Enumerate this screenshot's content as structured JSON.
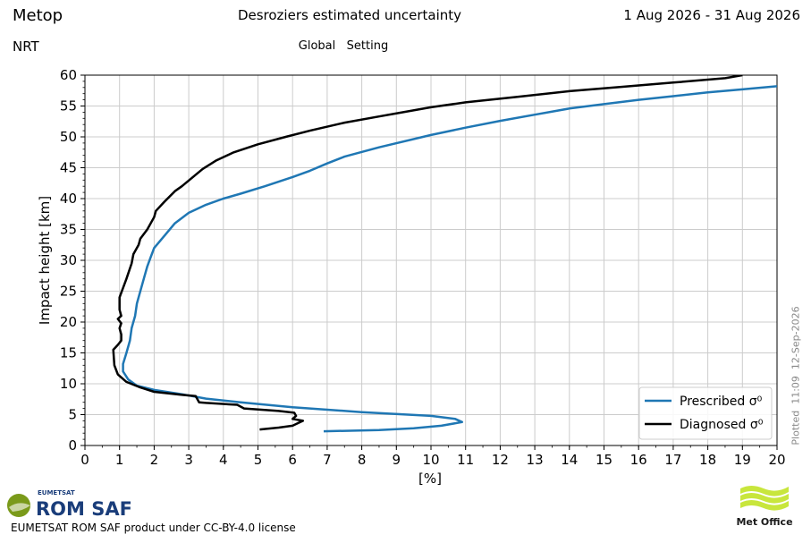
{
  "header": {
    "satellite": "Metop",
    "title": "Desroziers estimated uncertainty",
    "date_range": "1 Aug 2026 - 31 Aug 2026",
    "product": "NRT",
    "setting": "Global   Setting"
  },
  "footer": {
    "license": "EUMETSAT ROM SAF product under CC-BY-4.0 license",
    "plotted": "Plotted  11:09  12-Sep-2026",
    "eumetsat_logo_small": "EUMETSAT",
    "eumetsat_logo_main": "ROM SAF",
    "metoffice_logo": "Met Office"
  },
  "colors": {
    "prescribed": "#1f77b4",
    "diagnosed": "#000000",
    "grid": "#cccccc",
    "eumetsat_green": "#7a9a1a",
    "eumetsat_blue": "#1a3d7a",
    "metoffice_green": "#c8e63c"
  },
  "chart_data": {
    "type": "line",
    "xlabel": "[%]",
    "ylabel": "Impact height [km]",
    "xlim": [
      0,
      20
    ],
    "ylim": [
      0,
      60
    ],
    "xticks": [
      0,
      1,
      2,
      3,
      4,
      5,
      6,
      7,
      8,
      9,
      10,
      11,
      12,
      13,
      14,
      15,
      16,
      17,
      18,
      19,
      20
    ],
    "yticks": [
      0,
      5,
      10,
      15,
      20,
      25,
      30,
      35,
      40,
      45,
      50,
      55,
      60
    ],
    "grid": true,
    "legend_position": "lower-right",
    "series": [
      {
        "name": "Prescribed σ⁰",
        "color_key": "prescribed",
        "points": [
          [
            6.9,
            2.3
          ],
          [
            8.5,
            2.5
          ],
          [
            9.5,
            2.8
          ],
          [
            10.3,
            3.2
          ],
          [
            10.9,
            3.8
          ],
          [
            10.7,
            4.3
          ],
          [
            10.0,
            4.8
          ],
          [
            8.0,
            5.4
          ],
          [
            6.0,
            6.2
          ],
          [
            4.5,
            7.0
          ],
          [
            3.5,
            7.6
          ],
          [
            2.8,
            8.3
          ],
          [
            2.0,
            9.0
          ],
          [
            1.5,
            9.7
          ],
          [
            1.25,
            10.7
          ],
          [
            1.1,
            12.0
          ],
          [
            1.1,
            13.2
          ],
          [
            1.2,
            15.0
          ],
          [
            1.3,
            17.0
          ],
          [
            1.35,
            19.0
          ],
          [
            1.45,
            21.0
          ],
          [
            1.5,
            23.0
          ],
          [
            1.55,
            24.0
          ],
          [
            1.7,
            27.0
          ],
          [
            1.8,
            29.0
          ],
          [
            1.9,
            30.5
          ],
          [
            2.0,
            32.0
          ],
          [
            2.3,
            34.0
          ],
          [
            2.6,
            36.0
          ],
          [
            3.0,
            37.7
          ],
          [
            3.5,
            39.0
          ],
          [
            4.0,
            40.0
          ],
          [
            4.5,
            40.8
          ],
          [
            5.2,
            42.0
          ],
          [
            6.0,
            43.5
          ],
          [
            6.5,
            44.5
          ],
          [
            7.0,
            45.7
          ],
          [
            7.5,
            46.8
          ],
          [
            8.5,
            48.3
          ],
          [
            10.0,
            50.3
          ],
          [
            11.0,
            51.5
          ],
          [
            12.0,
            52.6
          ],
          [
            13.0,
            53.6
          ],
          [
            14.0,
            54.6
          ],
          [
            15.0,
            55.3
          ],
          [
            16.0,
            56.0
          ],
          [
            17.0,
            56.6
          ],
          [
            18.0,
            57.2
          ],
          [
            19.0,
            57.7
          ],
          [
            20.0,
            58.2
          ]
        ]
      },
      {
        "name": "Diagnosed σ⁰",
        "color_key": "diagnosed",
        "points": [
          [
            5.05,
            2.6
          ],
          [
            5.6,
            2.9
          ],
          [
            6.0,
            3.2
          ],
          [
            6.3,
            4.0
          ],
          [
            6.0,
            4.3
          ],
          [
            6.1,
            4.8
          ],
          [
            6.05,
            5.3
          ],
          [
            5.6,
            5.6
          ],
          [
            4.6,
            6.0
          ],
          [
            4.4,
            6.6
          ],
          [
            3.5,
            6.9
          ],
          [
            3.3,
            7.0
          ],
          [
            3.2,
            8.0
          ],
          [
            2.8,
            8.2
          ],
          [
            2.0,
            8.7
          ],
          [
            1.6,
            9.4
          ],
          [
            1.2,
            10.3
          ],
          [
            0.95,
            11.5
          ],
          [
            0.85,
            13.0
          ],
          [
            0.82,
            15.5
          ],
          [
            0.95,
            16.3
          ],
          [
            1.05,
            17.0
          ],
          [
            1.05,
            18.0
          ],
          [
            1.0,
            19.0
          ],
          [
            1.05,
            19.8
          ],
          [
            0.95,
            20.5
          ],
          [
            1.05,
            21.0
          ],
          [
            1.0,
            22.0
          ],
          [
            1.0,
            23.5
          ],
          [
            1.0,
            24.0
          ],
          [
            1.2,
            27.0
          ],
          [
            1.35,
            29.5
          ],
          [
            1.4,
            31.0
          ],
          [
            1.55,
            32.5
          ],
          [
            1.6,
            33.5
          ],
          [
            1.8,
            35.0
          ],
          [
            2.0,
            37.0
          ],
          [
            2.05,
            38.0
          ],
          [
            2.3,
            39.5
          ],
          [
            2.6,
            41.2
          ],
          [
            2.8,
            42.0
          ],
          [
            3.4,
            44.8
          ],
          [
            3.8,
            46.2
          ],
          [
            4.3,
            47.5
          ],
          [
            5.0,
            48.8
          ],
          [
            5.8,
            50.0
          ],
          [
            6.5,
            51.0
          ],
          [
            7.5,
            52.3
          ],
          [
            8.5,
            53.3
          ],
          [
            10.0,
            54.8
          ],
          [
            11.0,
            55.6
          ],
          [
            12.5,
            56.5
          ],
          [
            14.0,
            57.4
          ],
          [
            15.5,
            58.1
          ],
          [
            17.0,
            58.8
          ],
          [
            18.5,
            59.5
          ],
          [
            19.0,
            60.0
          ]
        ]
      }
    ]
  }
}
